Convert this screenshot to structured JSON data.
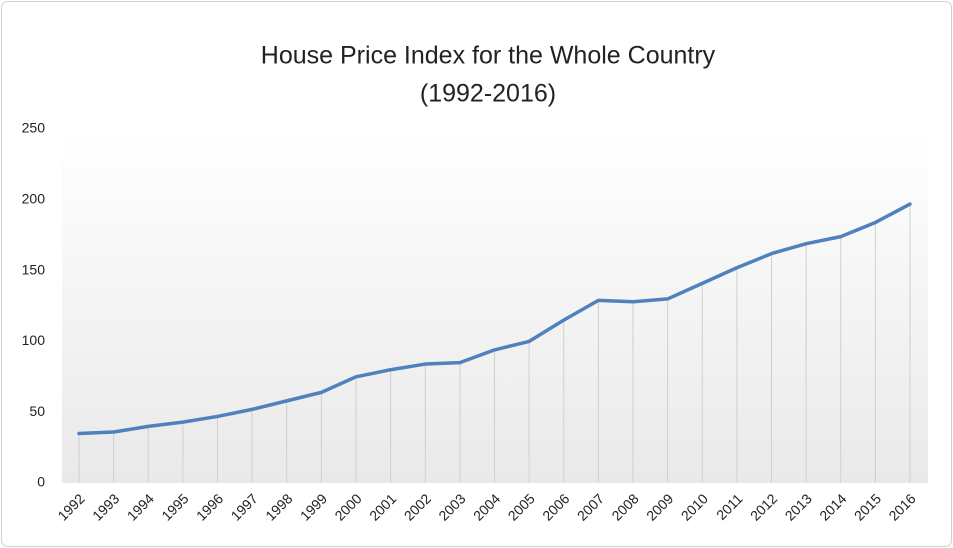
{
  "chart_data": {
    "type": "line",
    "title": "House Price Index for the Whole Country",
    "subtitle": "(1992-2016)",
    "categories": [
      "1992",
      "1993",
      "1994",
      "1995",
      "1996",
      "1997",
      "1998",
      "1999",
      "2000",
      "2001",
      "2002",
      "2003",
      "2004",
      "2005",
      "2006",
      "2007",
      "2008",
      "2009",
      "2010",
      "2011",
      "2012",
      "2013",
      "2014",
      "2015",
      "2016"
    ],
    "values": [
      35,
      36,
      40,
      43,
      47,
      52,
      58,
      64,
      75,
      80,
      84,
      85,
      94,
      100,
      115,
      129,
      128,
      130,
      141,
      152,
      162,
      169,
      174,
      184,
      197
    ],
    "color": "#4f81bd",
    "ylim": [
      0,
      250
    ],
    "yticks": [
      0,
      50,
      100,
      150,
      200,
      250
    ],
    "drop_lines": true
  }
}
